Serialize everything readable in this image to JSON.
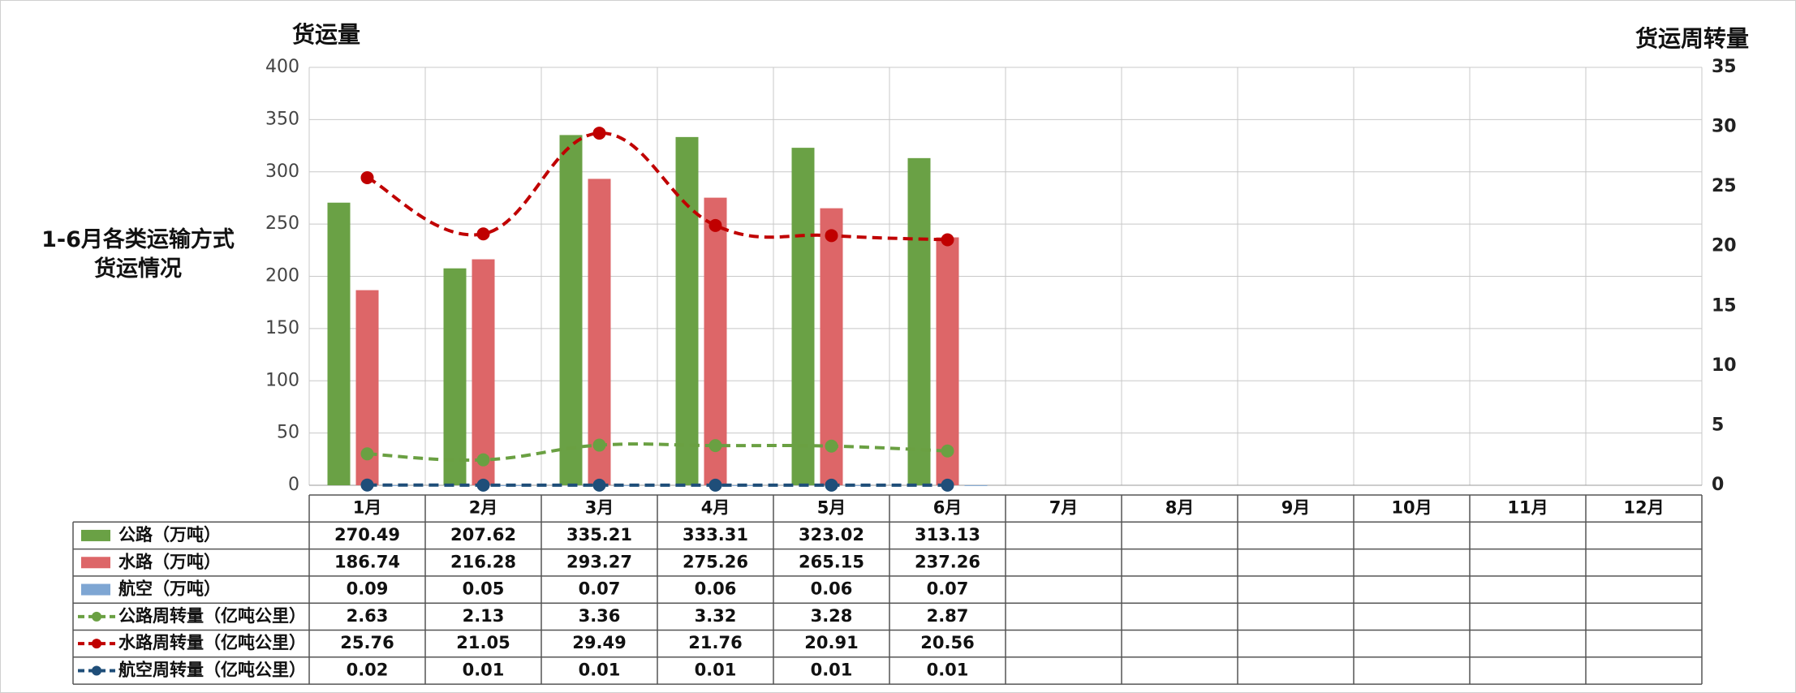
{
  "chart_data": {
    "type": "bar_line",
    "title": "1-6月各类运输方式\n货运情况",
    "y_label": "货运量",
    "y2_label": "货运周转量",
    "categories": [
      "1月",
      "2月",
      "3月",
      "4月",
      "5月",
      "6月",
      "7月",
      "8月",
      "9月",
      "10月",
      "11月",
      "12月"
    ],
    "ylim": [
      0,
      400
    ],
    "yticks": [
      0,
      50,
      100,
      150,
      200,
      250,
      300,
      350,
      400
    ],
    "y2lim": [
      0,
      35
    ],
    "y2ticks": [
      0,
      5,
      10,
      15,
      20,
      25,
      30,
      35
    ],
    "grid": true,
    "series": [
      {
        "name": "公路（万吨）",
        "type": "bar",
        "color": "#6aa145",
        "values": [
          270.49,
          207.62,
          335.21,
          333.31,
          323.02,
          313.13,
          null,
          null,
          null,
          null,
          null,
          null
        ]
      },
      {
        "name": "水路（万吨）",
        "type": "bar",
        "color": "#dd6668",
        "values": [
          186.74,
          216.28,
          293.27,
          275.26,
          265.15,
          237.26,
          null,
          null,
          null,
          null,
          null,
          null
        ]
      },
      {
        "name": "航空（万吨）",
        "type": "bar",
        "color": "#7ea6d3",
        "values": [
          0.09,
          0.05,
          0.07,
          0.06,
          0.06,
          0.07,
          null,
          null,
          null,
          null,
          null,
          null
        ]
      },
      {
        "name": "公路周转量（亿吨公里）",
        "type": "line",
        "axis": "y2",
        "color": "#6aa042",
        "values": [
          2.63,
          2.13,
          3.36,
          3.32,
          3.28,
          2.87,
          null,
          null,
          null,
          null,
          null,
          null
        ]
      },
      {
        "name": "水路周转量（亿吨公里）",
        "type": "line",
        "axis": "y2",
        "color": "#c00000",
        "values": [
          25.76,
          21.05,
          29.49,
          21.76,
          20.91,
          20.56,
          null,
          null,
          null,
          null,
          null,
          null
        ]
      },
      {
        "name": "航空周转量（亿吨公里）",
        "type": "line",
        "axis": "y2",
        "color": "#1f4e79",
        "values": [
          0.02,
          0.01,
          0.01,
          0.01,
          0.01,
          0.01,
          null,
          null,
          null,
          null,
          null,
          null
        ]
      }
    ]
  }
}
